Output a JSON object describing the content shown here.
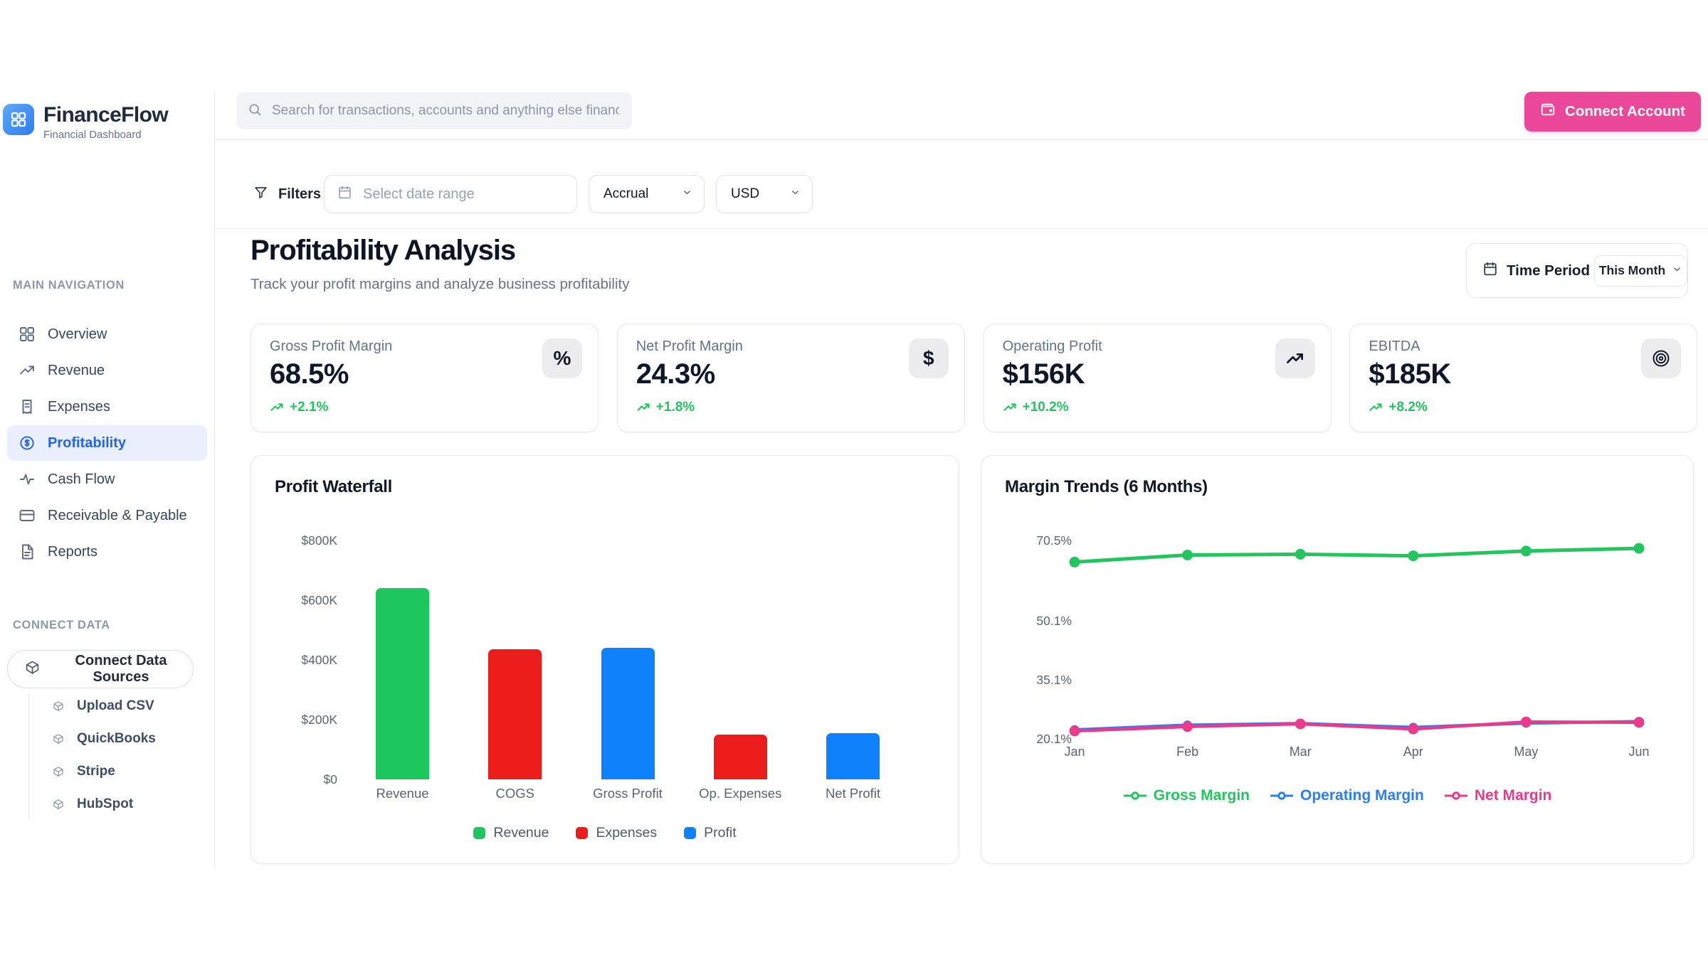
{
  "brand": {
    "name": "FinanceFlow",
    "tagline": "Financial Dashboard"
  },
  "header": {
    "search_placeholder": "Search for transactions, accounts and anything else financial",
    "connect_account_label": "Connect Account"
  },
  "filters": {
    "label": "Filters",
    "date_range_placeholder": "Select date range",
    "basis_value": "Accrual",
    "currency_value": "USD"
  },
  "sidebar": {
    "main_nav_title": "MAIN NAVIGATION",
    "items": [
      {
        "label": "Overview",
        "icon": "grid",
        "active": false
      },
      {
        "label": "Revenue",
        "icon": "trend",
        "active": false
      },
      {
        "label": "Expenses",
        "icon": "receipt",
        "active": false
      },
      {
        "label": "Profitability",
        "icon": "dollar-circle",
        "active": true
      },
      {
        "label": "Cash Flow",
        "icon": "activity",
        "active": false
      },
      {
        "label": "Receivable & Payable",
        "icon": "credit-card",
        "active": false
      },
      {
        "label": "Reports",
        "icon": "document",
        "active": false
      }
    ],
    "connect_title": "CONNECT DATA",
    "connect_button_label": "Connect Data Sources",
    "connect_items": [
      "Upload CSV",
      "QuickBooks",
      "Stripe",
      "HubSpot"
    ]
  },
  "page": {
    "title": "Profitability Analysis",
    "subtitle": "Track your profit margins and analyze business profitability",
    "time_period_label": "Time Period",
    "time_period_value": "This Month"
  },
  "kpis": [
    {
      "label": "Gross Profit Margin",
      "value": "68.5%",
      "delta": "+2.1%",
      "icon": "percent"
    },
    {
      "label": "Net Profit Margin",
      "value": "24.3%",
      "delta": "+1.8%",
      "icon": "dollar"
    },
    {
      "label": "Operating Profit",
      "value": "$156K",
      "delta": "+10.2%",
      "icon": "trend"
    },
    {
      "label": "EBITDA",
      "value": "$185K",
      "delta": "+8.2%",
      "icon": "target"
    }
  ],
  "colors": {
    "accent_pink": "#ec4899",
    "active_blue": "#2563eb",
    "positive_green": "#22c55e",
    "bar_green": "#1dc75e",
    "bar_red": "#ea1c1c",
    "bar_blue": "#0d82fb",
    "line_green": "#22c55e",
    "line_blue": "#2b7ff5",
    "line_pink": "#ea3b8b"
  },
  "chart_data": [
    {
      "type": "bar",
      "title": "Profit Waterfall",
      "categories": [
        "Revenue",
        "COGS",
        "Gross Profit",
        "Op. Expenses",
        "Net Profit"
      ],
      "values": [
        640,
        435,
        440,
        150,
        155
      ],
      "unit": "thousand USD",
      "bar_color_keys": [
        "bar_green",
        "bar_red",
        "bar_blue",
        "bar_red",
        "bar_blue"
      ],
      "y_tick_values": [
        0,
        200,
        400,
        600,
        800
      ],
      "y_tick_labels": [
        "$0",
        "$200K",
        "$400K",
        "$600K",
        "$800K"
      ],
      "ylim": [
        0,
        800
      ],
      "grid": false,
      "legend_position": "bottom",
      "legend": [
        {
          "label": "Revenue",
          "color_key": "bar_green"
        },
        {
          "label": "Expenses",
          "color_key": "bar_red"
        },
        {
          "label": "Profit",
          "color_key": "bar_blue"
        }
      ]
    },
    {
      "type": "line",
      "title": "Margin Trends (6 Months)",
      "x": [
        "Jan",
        "Feb",
        "Mar",
        "Apr",
        "May",
        "Jun"
      ],
      "series": [
        {
          "name": "Gross Margin",
          "color_key": "line_green",
          "values": [
            65.0,
            66.8,
            67.0,
            66.6,
            67.8,
            68.5
          ]
        },
        {
          "name": "Operating Margin",
          "color_key": "line_blue",
          "values": [
            22.4,
            23.6,
            24.0,
            23.0,
            24.1,
            24.5
          ]
        },
        {
          "name": "Net Margin",
          "color_key": "line_pink",
          "values": [
            22.1,
            23.2,
            23.9,
            22.6,
            24.4,
            24.3
          ]
        }
      ],
      "unit": "%",
      "y_tick_values": [
        70.5,
        50.1,
        35.1,
        20.1
      ],
      "y_tick_labels": [
        "70.5%",
        "50.1%",
        "35.1%",
        "20.1%"
      ],
      "ylim": [
        20.1,
        70.5
      ],
      "grid": false,
      "legend_position": "bottom"
    }
  ]
}
